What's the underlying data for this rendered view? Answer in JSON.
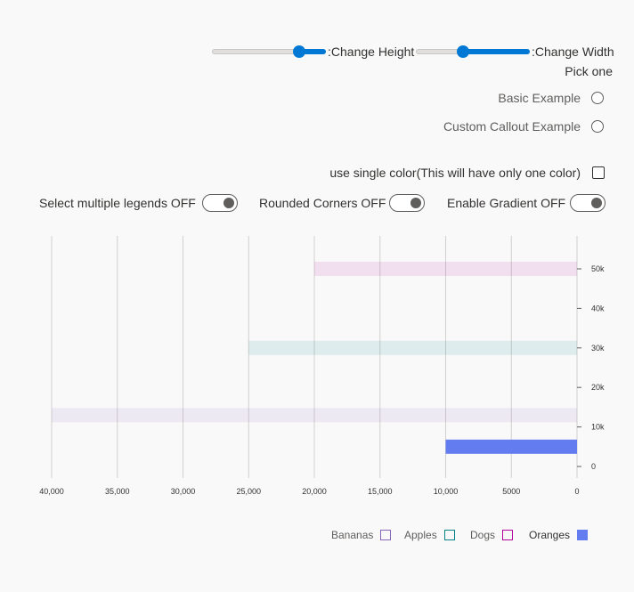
{
  "controls": {
    "height_slider_label": ":Change Height",
    "width_slider_label": ":Change Width",
    "height_slider_value": 0.8,
    "width_slider_value": 0.4,
    "radio_group_label": "Pick one",
    "radio_options": [
      "Basic Example",
      "Custom Callout Example"
    ],
    "single_color_label": "use single color(This will have only one color)",
    "toggle_legends_label": "Select multiple legends OFF",
    "toggle_rounded_label": "Rounded Corners OFF",
    "toggle_gradient_label": "Enable Gradient OFF"
  },
  "chart_data": {
    "type": "bar",
    "orientation": "horizontal",
    "x_axis_direction": "reversed",
    "xlim": [
      0,
      40000
    ],
    "x_ticks": [
      "40,000",
      "35,000",
      "30,000",
      "25,000",
      "20,000",
      "15,000",
      "10,000",
      "5000",
      "0"
    ],
    "ylim": [
      0,
      55000
    ],
    "y_ticks": [
      "50k",
      "40k",
      "30k",
      "20k",
      "10k",
      "0"
    ],
    "grid": true,
    "legend_position": "bottom-right",
    "series": [
      {
        "name": "Bananas",
        "y": 13000,
        "x": 40000,
        "color": "#8764b8",
        "faded": true
      },
      {
        "name": "Apples",
        "y": 30000,
        "x": 25000,
        "color": "#038387",
        "faded": true
      },
      {
        "name": "Dogs",
        "y": 50000,
        "x": 20000,
        "color": "#b4009e",
        "faded": true
      },
      {
        "name": "Oranges",
        "y": 5000,
        "x": 10000,
        "color": "#637cef",
        "faded": false
      }
    ]
  }
}
